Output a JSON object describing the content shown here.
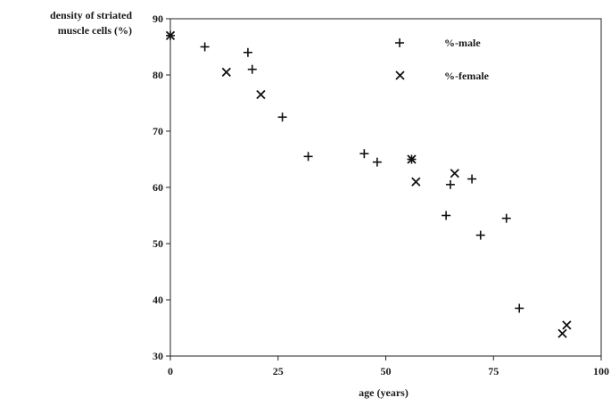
{
  "chart_data": {
    "type": "scatter",
    "title": "",
    "xlabel": "age (years)",
    "ylabel_lines": [
      "density of striated",
      "muscle cells (%)"
    ],
    "xlim": [
      0,
      100
    ],
    "ylim": [
      30,
      90
    ],
    "xticks": [
      "0",
      "25",
      "50",
      "75",
      "100"
    ],
    "yticks": [
      "30",
      "40",
      "50",
      "60",
      "70",
      "80",
      "90"
    ],
    "grid": false,
    "legend_position": "top-right",
    "series": [
      {
        "name": "%-male",
        "marker": "plus",
        "points": [
          {
            "x": 0,
            "y": 87
          },
          {
            "x": 8,
            "y": 85
          },
          {
            "x": 18,
            "y": 84
          },
          {
            "x": 19,
            "y": 81
          },
          {
            "x": 26,
            "y": 72.5
          },
          {
            "x": 32,
            "y": 65.5
          },
          {
            "x": 45,
            "y": 66
          },
          {
            "x": 48,
            "y": 64.5
          },
          {
            "x": 56,
            "y": 65
          },
          {
            "x": 64,
            "y": 55
          },
          {
            "x": 65,
            "y": 60.5
          },
          {
            "x": 70,
            "y": 61.5
          },
          {
            "x": 72,
            "y": 51.5
          },
          {
            "x": 78,
            "y": 54.5
          },
          {
            "x": 81,
            "y": 38.5
          }
        ]
      },
      {
        "name": "%-female",
        "marker": "x",
        "points": [
          {
            "x": 0,
            "y": 87
          },
          {
            "x": 13,
            "y": 80.5
          },
          {
            "x": 21,
            "y": 76.5
          },
          {
            "x": 56,
            "y": 65
          },
          {
            "x": 57,
            "y": 61
          },
          {
            "x": 66,
            "y": 62.5
          },
          {
            "x": 91,
            "y": 34
          },
          {
            "x": 92,
            "y": 35.5
          }
        ]
      }
    ]
  }
}
